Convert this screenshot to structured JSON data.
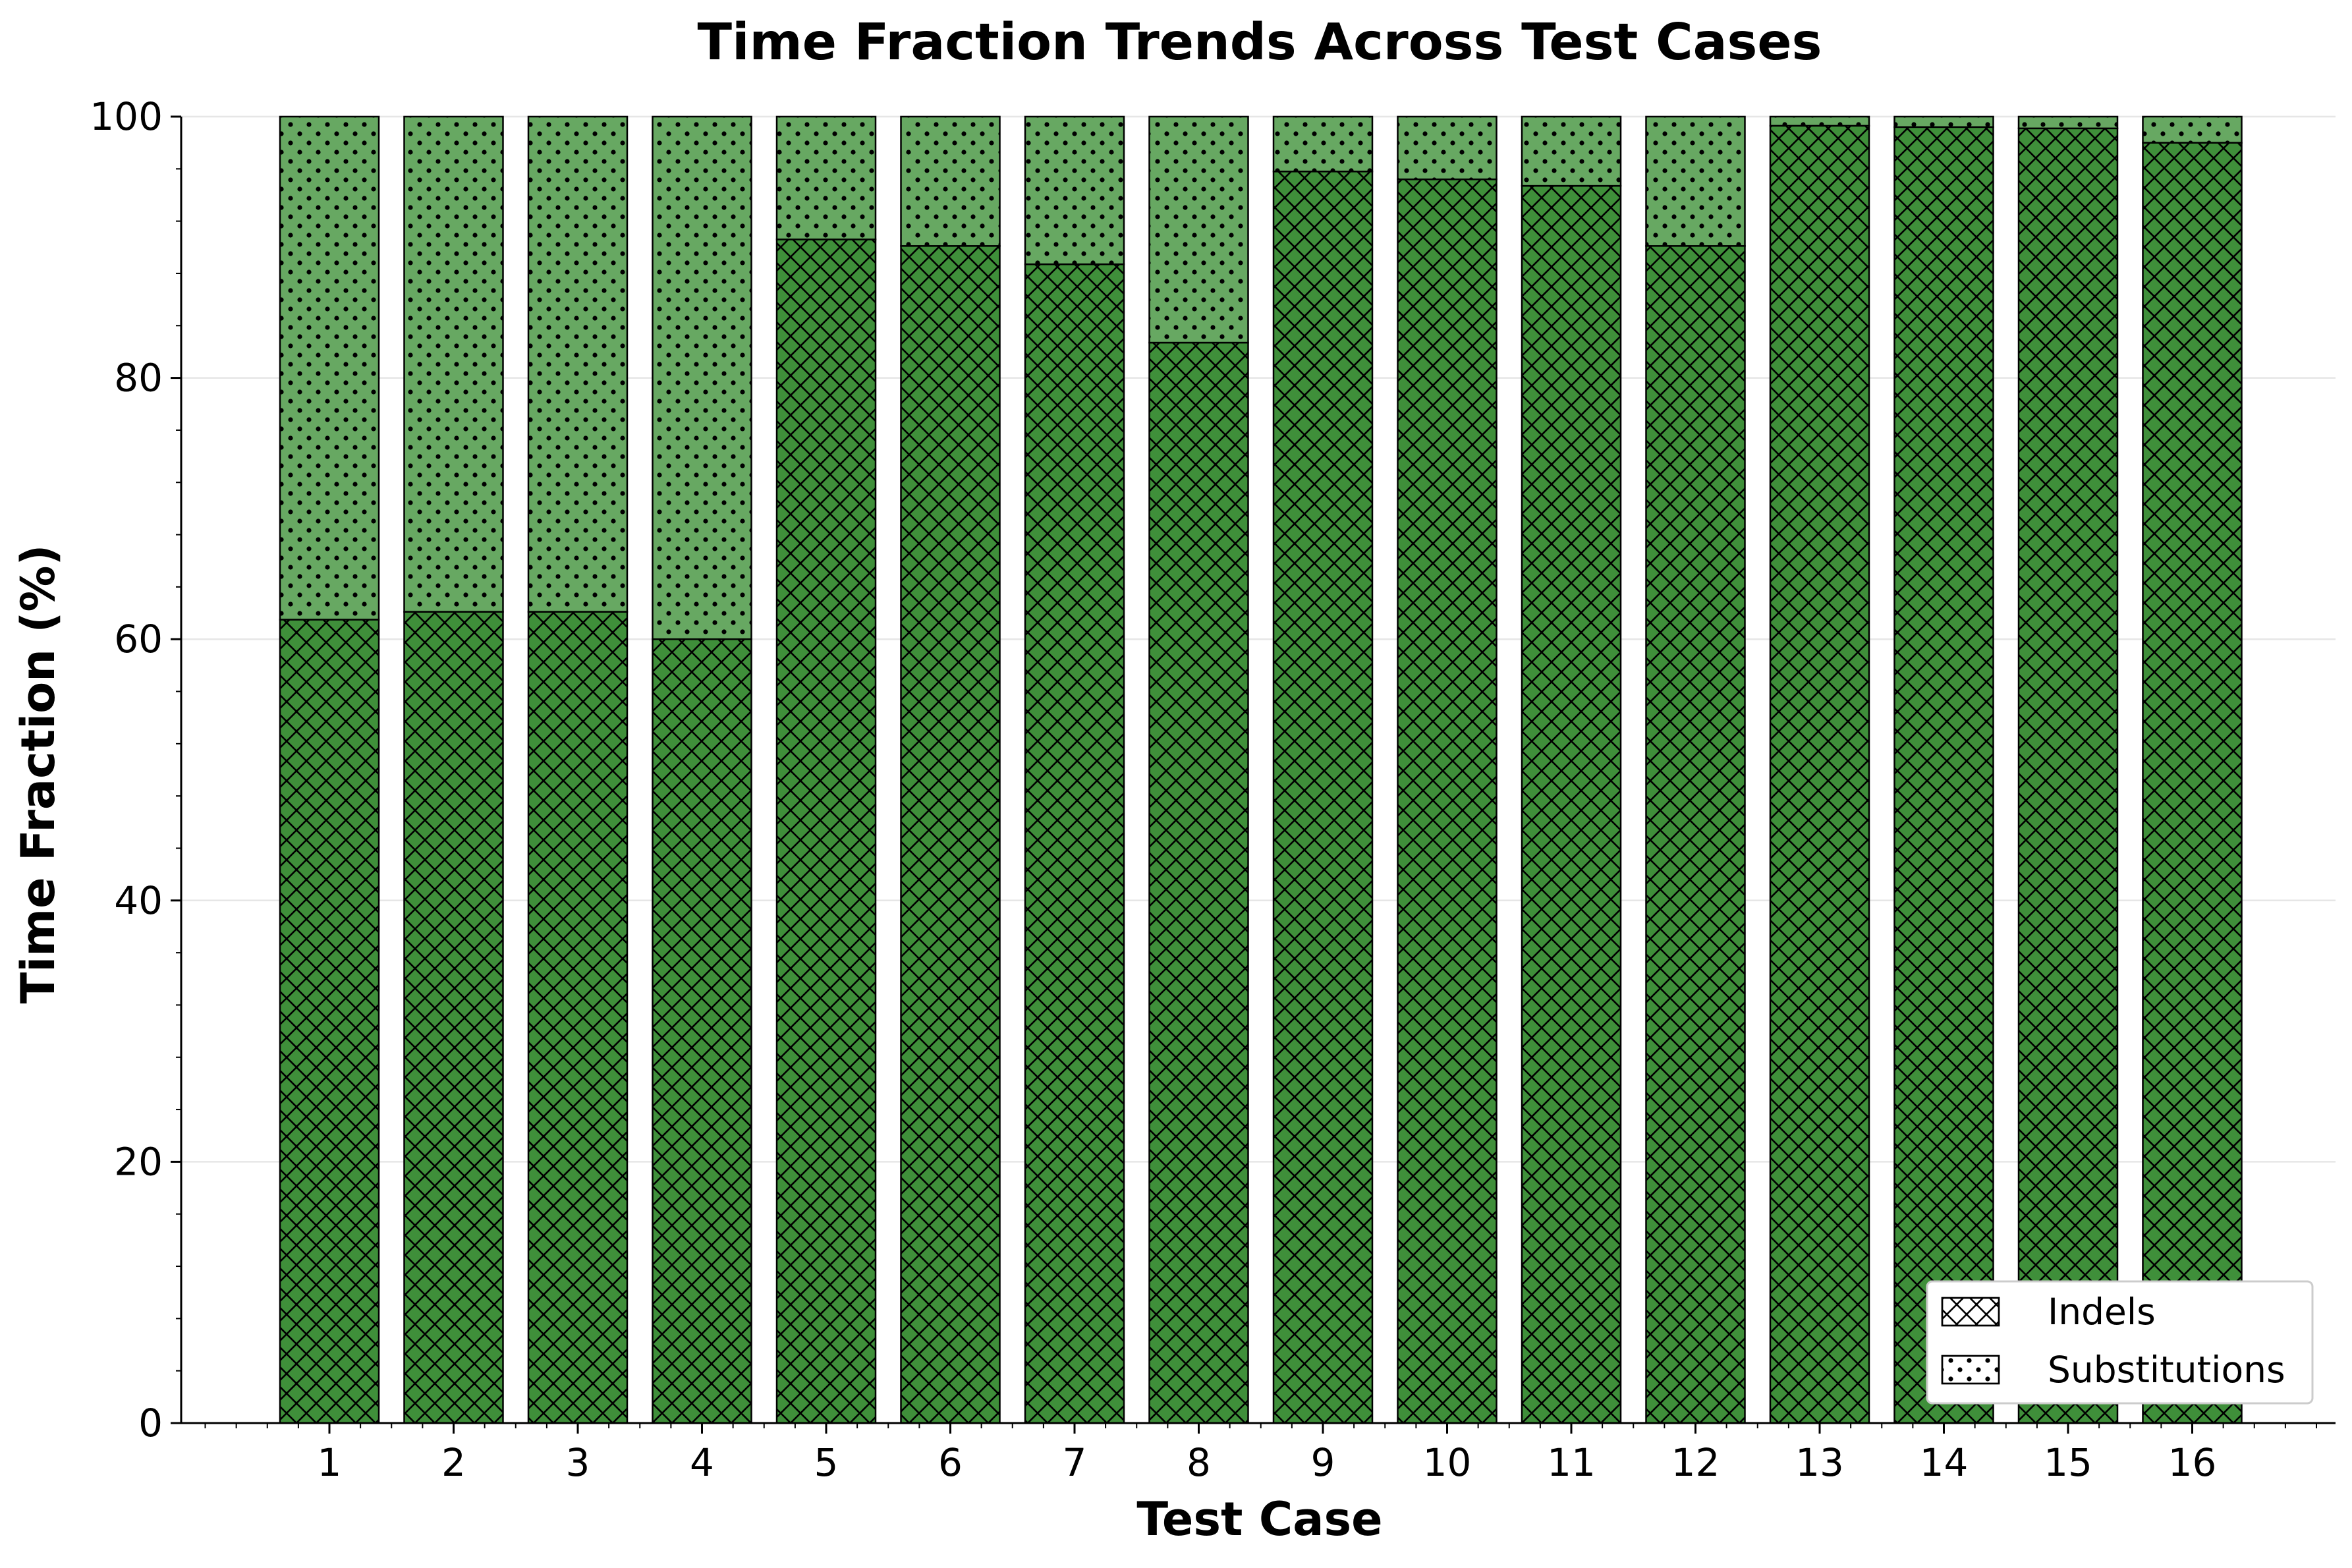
{
  "chart_data": {
    "type": "bar",
    "stacked": true,
    "title": "Time Fraction Trends Across Test Cases",
    "xlabel": "Test Case",
    "ylabel": "Time Fraction (%)",
    "categories": [
      "1",
      "2",
      "3",
      "4",
      "5",
      "6",
      "7",
      "8",
      "9",
      "10",
      "11",
      "12",
      "13",
      "14",
      "15",
      "16"
    ],
    "ylim": [
      0,
      100
    ],
    "yticks": [
      "0",
      "20",
      "40",
      "60",
      "80",
      "100"
    ],
    "grid": "horizontal",
    "legend_position": "bottom-right",
    "series": [
      {
        "name": "Indels",
        "pattern": "crosshatch",
        "color": "#3f8f3a",
        "values": [
          61.5,
          62.1,
          62.1,
          60.0,
          90.6,
          90.1,
          88.7,
          82.7,
          95.8,
          95.2,
          94.7,
          90.1,
          99.3,
          99.2,
          99.1,
          98.0
        ]
      },
      {
        "name": "Substitutions",
        "pattern": "dots",
        "color": "#67a862",
        "values": [
          38.5,
          37.9,
          37.9,
          40.0,
          9.4,
          9.9,
          11.3,
          17.3,
          4.2,
          4.8,
          5.3,
          9.9,
          0.7,
          0.8,
          0.9,
          2.0
        ]
      }
    ]
  }
}
